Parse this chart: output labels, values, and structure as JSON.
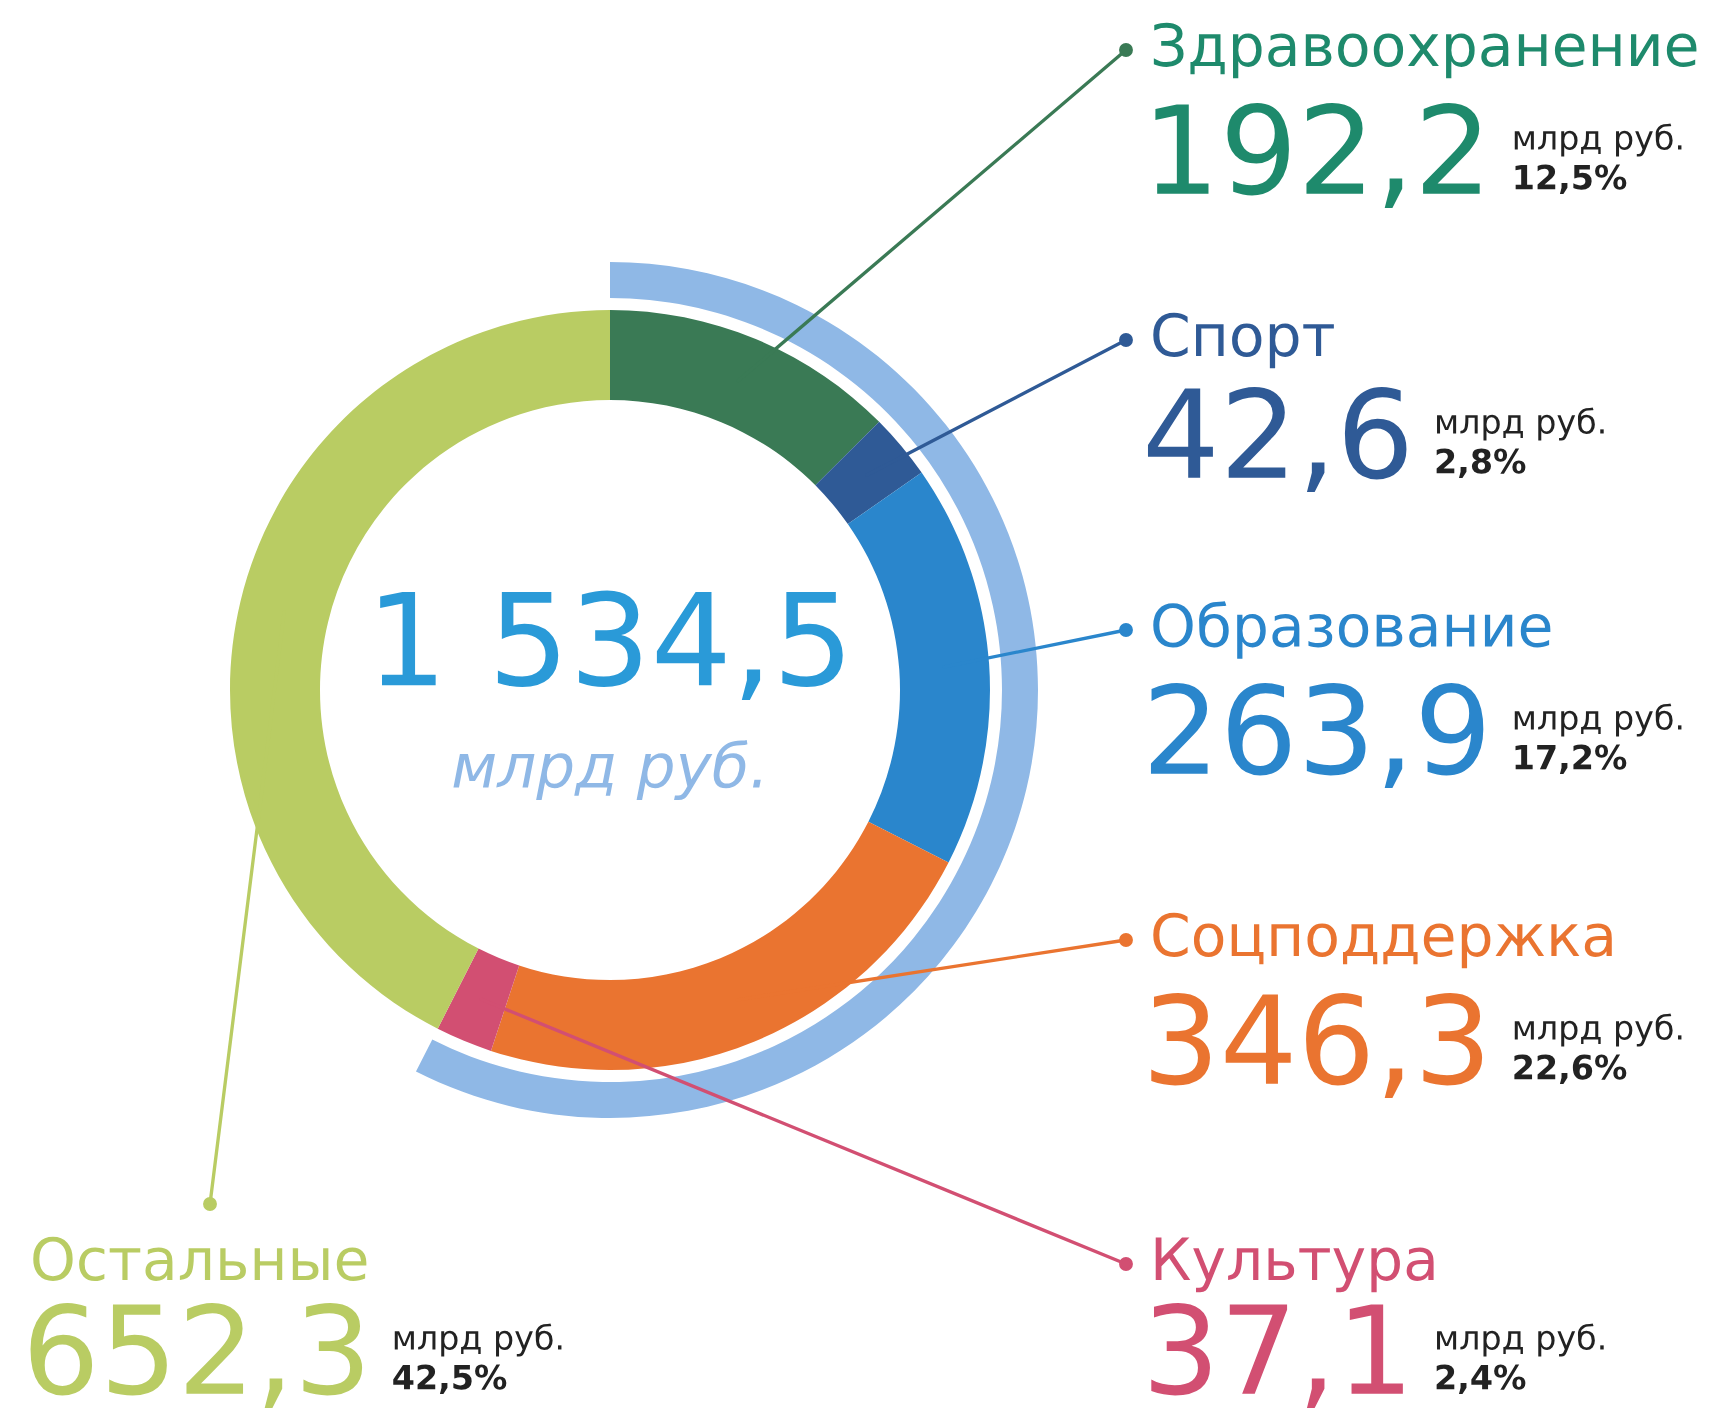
{
  "chart_data": {
    "type": "donut",
    "title": "1 534,5",
    "subtitle": "млрд руб.",
    "legend": "right",
    "categories": [
      "Здравоохранение",
      "Спорт",
      "Образование",
      "Соцподдержка",
      "Культура",
      "Остальные"
    ],
    "values": [
      192.2,
      42.6,
      263.9,
      346.3,
      37.1,
      652.3
    ],
    "value_labels": [
      "192,2",
      "42,6",
      "263,9",
      "346,3",
      "37,1",
      "652,3"
    ],
    "colors": [
      "#3a7a55",
      "#2f5a96",
      "#2a86cc",
      "#ea7430",
      "#d24f72",
      "#b9cc63"
    ],
    "annotations": [
      {
        "text": "млрд руб.",
        "x": "Здравоохранение"
      },
      {
        "text": "12,5%",
        "x": "Здравоохранение"
      },
      {
        "text": "млрд руб.",
        "x": "Спорт"
      },
      {
        "text": "2,8%",
        "x": "Спорт"
      },
      {
        "text": "млрд руб.",
        "x": "Образование"
      },
      {
        "text": "17,2%",
        "x": "Образование"
      },
      {
        "text": "млрд руб.",
        "x": "Соцподдержка"
      },
      {
        "text": "22,6%",
        "x": "Соцподдержка"
      },
      {
        "text": "млрд руб.",
        "x": "Культура"
      },
      {
        "text": "2,4%",
        "x": "Культура"
      },
      {
        "text": "млрд руб.",
        "x": "Остальные"
      },
      {
        "text": "42,5%",
        "x": "Остальные"
      }
    ]
  }
}
